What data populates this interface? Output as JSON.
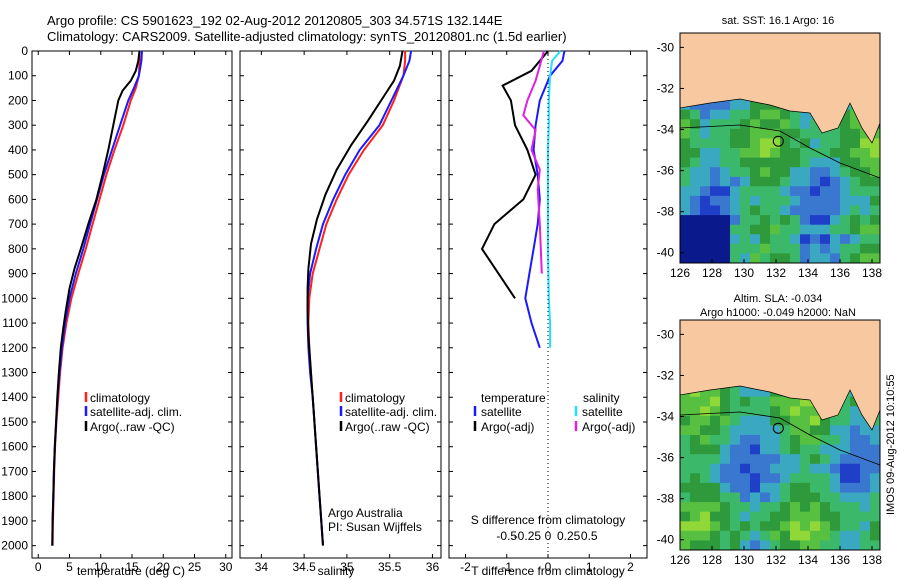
{
  "title_line1": "Argo profile: CS 5901623_192 02-Aug-2012 20120805_303 34.571S 132.144E",
  "title_line2": "Climatology: CARS2009. Satellite-adjusted climatology: synTS_20120801.nc (1.5d earlier)",
  "colors": {
    "climatology": "#ff2020",
    "satellite": "#1a1aff",
    "argo": "#000000",
    "sal_satellite": "#20e0ff",
    "sal_argo": "#e020e0",
    "land": "#f8c8a0"
  },
  "temp_panel": {
    "xlabel": "temperature (deg C)",
    "legend": [
      "climatology",
      "satellite-adj. clim.",
      "Argo(..raw -QC)"
    ]
  },
  "sal_panel": {
    "xlabel": "salinity",
    "legend": [
      "climatology",
      "satellite-adj. clim.",
      "Argo(..raw -QC)"
    ],
    "note1": "Argo Australia",
    "note2": "PI: Susan Wijffels"
  },
  "diff_panel": {
    "top_label": "S difference from climatology",
    "xlabel": "T difference from climatology",
    "legend_temp_head": "temperature",
    "legend_sal_head": "salinity",
    "legend_temp": [
      "satellite",
      "Argo(-adj)"
    ],
    "legend_sal": [
      "satellite",
      "Argo(-adj)"
    ]
  },
  "map1": {
    "title": "sat. SST: 16.1  Argo: 16"
  },
  "map2": {
    "title1": "Altim. SLA: -0.034",
    "title2": "Argo h1000: -0.049 h2000: NaN"
  },
  "footer_stamp": "IMOS 09-Aug-2012 10:10:55",
  "chart_data": [
    {
      "type": "line",
      "panel": "temperature profile",
      "xlabel": "temperature (deg C)",
      "ylabel": "",
      "xlim": [
        -1,
        31
      ],
      "ylim": [
        2050,
        0
      ],
      "xticks": [
        0,
        5,
        10,
        15,
        20,
        25,
        30
      ],
      "yticks": [
        0,
        100,
        200,
        300,
        400,
        500,
        600,
        700,
        800,
        900,
        1000,
        1100,
        1200,
        1300,
        1400,
        1500,
        1600,
        1700,
        1800,
        1900,
        2000
      ],
      "series": [
        {
          "name": "climatology",
          "points": [
            [
              16.2,
              0
            ],
            [
              16.2,
              40
            ],
            [
              16.1,
              100
            ],
            [
              15.6,
              150
            ],
            [
              14.8,
              200
            ],
            [
              13.6,
              300
            ],
            [
              12.2,
              400
            ],
            [
              10.9,
              500
            ],
            [
              9.8,
              600
            ],
            [
              8.7,
              700
            ],
            [
              7.6,
              800
            ],
            [
              6.4,
              900
            ],
            [
              5.3,
              1000
            ],
            [
              4.5,
              1100
            ],
            [
              3.9,
              1200
            ],
            [
              3.5,
              1300
            ],
            [
              3.2,
              1400
            ],
            [
              2.9,
              1500
            ],
            [
              2.7,
              1600
            ],
            [
              2.55,
              1700
            ],
            [
              2.45,
              1800
            ],
            [
              2.35,
              1900
            ],
            [
              2.3,
              2000
            ]
          ]
        },
        {
          "name": "satellite-adj. clim.",
          "points": [
            [
              16.6,
              0
            ],
            [
              16.5,
              40
            ],
            [
              16.1,
              100
            ],
            [
              15.3,
              150
            ],
            [
              14.4,
              200
            ],
            [
              13.1,
              300
            ],
            [
              11.8,
              400
            ],
            [
              10.5,
              500
            ],
            [
              9.4,
              600
            ],
            [
              8.3,
              700
            ],
            [
              7.2,
              800
            ],
            [
              6.0,
              900
            ],
            [
              5.0,
              1000
            ],
            [
              4.3,
              1100
            ],
            [
              3.8,
              1200
            ],
            [
              3.4,
              1300
            ],
            [
              3.1,
              1400
            ],
            [
              2.85,
              1500
            ],
            [
              2.65,
              1600
            ],
            [
              2.5,
              1700
            ],
            [
              2.4,
              1800
            ],
            [
              2.3,
              1900
            ],
            [
              2.25,
              2000
            ]
          ]
        },
        {
          "name": "Argo(..raw -QC)",
          "points": [
            [
              16.2,
              0
            ],
            [
              16.0,
              40
            ],
            [
              15.6,
              80
            ],
            [
              14.8,
              120
            ],
            [
              13.5,
              160
            ],
            [
              12.8,
              200
            ],
            [
              12.0,
              300
            ],
            [
              11.2,
              400
            ],
            [
              10.3,
              500
            ],
            [
              9.3,
              600
            ],
            [
              8.0,
              700
            ],
            [
              6.8,
              800
            ],
            [
              5.8,
              880
            ],
            [
              5.0,
              960
            ],
            [
              4.4,
              1050
            ],
            [
              4.0,
              1120
            ],
            [
              3.6,
              1200
            ],
            [
              3.3,
              1300
            ],
            [
              3.05,
              1400
            ],
            [
              2.85,
              1500
            ],
            [
              2.65,
              1600
            ],
            [
              2.5,
              1700
            ],
            [
              2.4,
              1800
            ],
            [
              2.3,
              1900
            ],
            [
              2.25,
              2000
            ]
          ]
        }
      ]
    },
    {
      "type": "line",
      "panel": "salinity profile",
      "xlabel": "salinity",
      "ylabel": "",
      "xlim": [
        33.75,
        36.1
      ],
      "ylim": [
        2050,
        0
      ],
      "xticks": [
        34,
        34.5,
        35,
        35.5,
        36
      ],
      "series": [
        {
          "name": "climatology",
          "points": [
            [
              35.68,
              0
            ],
            [
              35.68,
              40
            ],
            [
              35.66,
              100
            ],
            [
              35.55,
              200
            ],
            [
              35.42,
              300
            ],
            [
              35.2,
              400
            ],
            [
              35.02,
              500
            ],
            [
              34.88,
              600
            ],
            [
              34.76,
              700
            ],
            [
              34.68,
              800
            ],
            [
              34.6,
              900
            ],
            [
              34.56,
              1000
            ],
            [
              34.55,
              1100
            ],
            [
              34.56,
              1200
            ],
            [
              34.58,
              1300
            ],
            [
              34.6,
              1400
            ],
            [
              34.62,
              1500
            ],
            [
              34.64,
              1600
            ],
            [
              34.66,
              1700
            ],
            [
              34.68,
              1800
            ],
            [
              34.7,
              1900
            ],
            [
              34.72,
              2000
            ]
          ]
        },
        {
          "name": "satellite-adj. clim.",
          "points": [
            [
              35.75,
              0
            ],
            [
              35.73,
              40
            ],
            [
              35.66,
              100
            ],
            [
              35.52,
              200
            ],
            [
              35.38,
              300
            ],
            [
              35.15,
              400
            ],
            [
              34.98,
              500
            ],
            [
              34.84,
              600
            ],
            [
              34.72,
              700
            ],
            [
              34.64,
              800
            ],
            [
              34.57,
              900
            ],
            [
              34.54,
              1000
            ],
            [
              34.54,
              1100
            ],
            [
              34.55,
              1200
            ],
            [
              34.57,
              1300
            ],
            [
              34.6,
              1400
            ],
            [
              34.62,
              1500
            ],
            [
              34.64,
              1600
            ],
            [
              34.66,
              1700
            ],
            [
              34.68,
              1800
            ],
            [
              34.7,
              1900
            ],
            [
              34.72,
              2000
            ]
          ]
        },
        {
          "name": "Argo(..raw -QC)",
          "points": [
            [
              35.65,
              0
            ],
            [
              35.62,
              60
            ],
            [
              35.55,
              120
            ],
            [
              35.4,
              200
            ],
            [
              35.25,
              280
            ],
            [
              35.05,
              380
            ],
            [
              34.88,
              480
            ],
            [
              34.75,
              580
            ],
            [
              34.65,
              680
            ],
            [
              34.58,
              780
            ],
            [
              34.55,
              880
            ],
            [
              34.54,
              960
            ],
            [
              34.54,
              1050
            ],
            [
              34.55,
              1150
            ],
            [
              34.57,
              1250
            ],
            [
              34.59,
              1350
            ],
            [
              34.61,
              1450
            ],
            [
              34.63,
              1550
            ],
            [
              34.65,
              1650
            ],
            [
              34.67,
              1750
            ],
            [
              34.69,
              1850
            ],
            [
              34.71,
              1950
            ],
            [
              34.72,
              2000
            ]
          ]
        }
      ]
    },
    {
      "type": "line",
      "panel": "difference from climatology",
      "xlabel": "T difference from climatology",
      "top_label": "S difference from climatology",
      "xlim": [
        -2.4,
        2.4
      ],
      "ylim": [
        2050,
        0
      ],
      "xticks": [
        -2,
        -1,
        0,
        1,
        2
      ],
      "top_ticks": [
        "-0.5",
        "-0.25",
        "0",
        "0.25",
        "0.5"
      ],
      "series": [
        {
          "name": "temperature satellite",
          "points": [
            [
              0.4,
              0
            ],
            [
              0.35,
              40
            ],
            [
              0.05,
              100
            ],
            [
              -0.2,
              200
            ],
            [
              -0.3,
              300
            ],
            [
              -0.35,
              400
            ],
            [
              -0.25,
              500
            ],
            [
              -0.2,
              600
            ],
            [
              -0.25,
              700
            ],
            [
              -0.35,
              800
            ],
            [
              -0.45,
              900
            ],
            [
              -0.55,
              1000
            ],
            [
              -0.4,
              1100
            ],
            [
              -0.2,
              1200
            ]
          ]
        },
        {
          "name": "temperature Argo(-adj)",
          "points": [
            [
              0.0,
              0
            ],
            [
              -0.2,
              40
            ],
            [
              -0.4,
              80
            ],
            [
              -1.1,
              140
            ],
            [
              -0.9,
              200
            ],
            [
              -0.8,
              300
            ],
            [
              -0.5,
              400
            ],
            [
              -0.3,
              500
            ],
            [
              -0.6,
              600
            ],
            [
              -1.3,
              700
            ],
            [
              -1.6,
              800
            ],
            [
              -1.2,
              900
            ],
            [
              -0.8,
              1000
            ]
          ]
        },
        {
          "name": "salinity satellite",
          "points": [
            [
              0.3,
              0
            ],
            [
              0.1,
              40
            ],
            [
              0.05,
              100
            ],
            [
              0.02,
              200
            ],
            [
              0.02,
              300
            ],
            [
              0.0,
              400
            ],
            [
              0.0,
              500
            ],
            [
              0.0,
              600
            ],
            [
              0.0,
              800
            ],
            [
              0.02,
              1000
            ],
            [
              0.05,
              1100
            ],
            [
              0.05,
              1200
            ]
          ]
        },
        {
          "name": "salinity Argo(-adj)",
          "points": [
            [
              -0.1,
              0
            ],
            [
              -0.2,
              60
            ],
            [
              -0.3,
              120
            ],
            [
              -0.5,
              200
            ],
            [
              -0.6,
              260
            ],
            [
              -0.3,
              320
            ],
            [
              -0.4,
              400
            ],
            [
              -0.2,
              480
            ],
            [
              -0.25,
              560
            ],
            [
              -0.2,
              700
            ],
            [
              -0.15,
              900
            ]
          ]
        }
      ]
    }
  ],
  "map_axes": {
    "map1": {
      "xticks": [
        "126",
        "128",
        "130",
        "132",
        "134",
        "136",
        "138"
      ],
      "yticks": [
        "-30",
        "-32",
        "-34",
        "-36",
        "-38",
        "-40"
      ]
    },
    "map2": {
      "xticks": [
        "126",
        "128",
        "130",
        "132",
        "134",
        "136",
        "138"
      ],
      "yticks": [
        "-30",
        "-32",
        "-34",
        "-36",
        "-38",
        "-40"
      ]
    }
  }
}
